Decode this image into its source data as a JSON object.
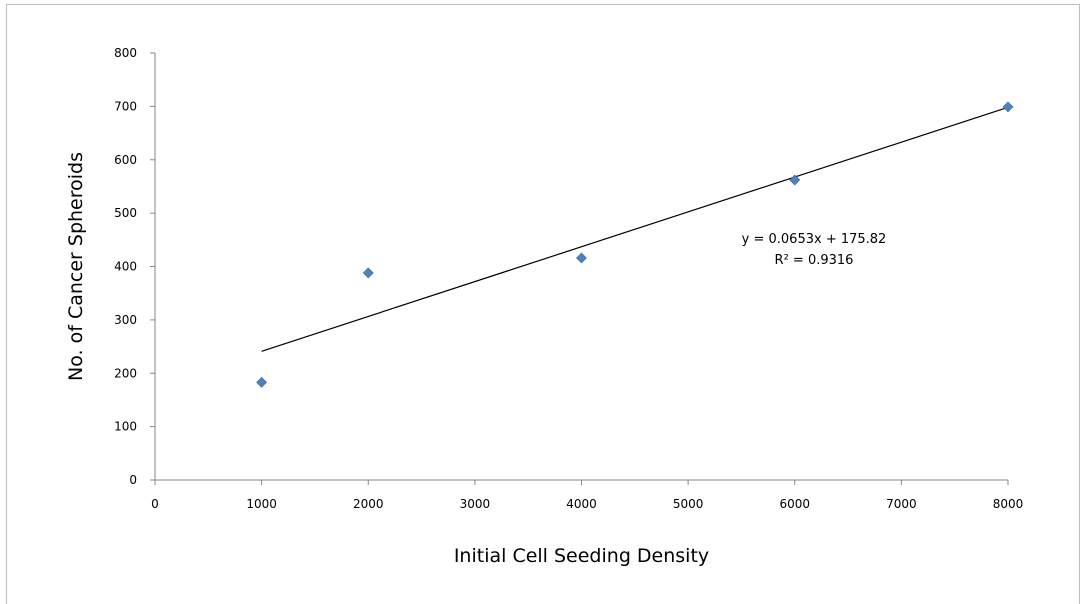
{
  "chart_data": {
    "type": "scatter",
    "title": "",
    "xlabel": "Initial Cell Seeding Density",
    "ylabel": "No. of Cancer Spheroids",
    "xlim": [
      0,
      8000
    ],
    "ylim": [
      0,
      800
    ],
    "x_ticks": [
      0,
      1000,
      2000,
      3000,
      4000,
      5000,
      6000,
      7000,
      8000
    ],
    "y_ticks": [
      0,
      100,
      200,
      300,
      400,
      500,
      600,
      700,
      800
    ],
    "grid": false,
    "legend": "none",
    "marker": "diamond",
    "marker_color": "#4f81bd",
    "series": [
      {
        "x": [
          1000,
          2000,
          4000,
          6000,
          8000
        ],
        "y": [
          183,
          388,
          416,
          562,
          699
        ]
      }
    ],
    "trendline": {
      "type": "linear",
      "slope": 0.0653,
      "intercept": 175.82,
      "x_range": [
        1000,
        8000
      ],
      "color": "#000000",
      "equation_text": "y = 0.0653x + 175.82",
      "r2_text": "R² = 0.9316"
    }
  }
}
